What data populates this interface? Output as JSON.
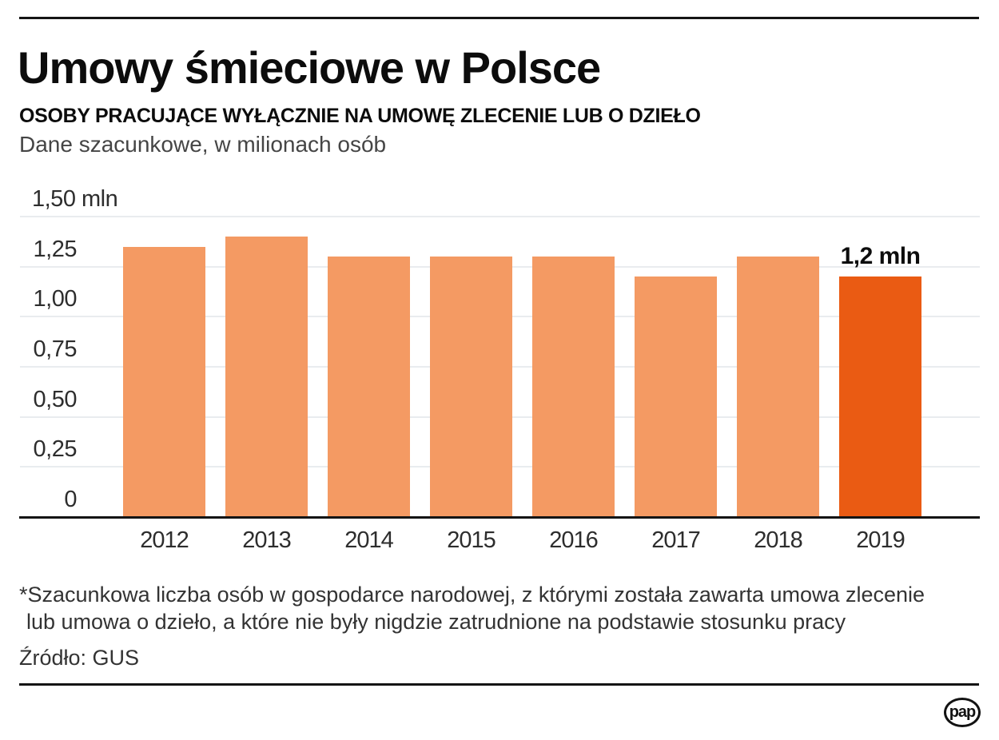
{
  "header": {
    "title": "Umowy śmieciowe w Polsce",
    "subtitle": "OSOBY PRACUJĄCE WYŁĄCZNIE NA UMOWĘ ZLECENIE LUB O DZIEŁO",
    "note": "Dane szacunkowe, w milionach osób"
  },
  "chart_data": {
    "type": "bar",
    "title": "Umowy śmieciowe w Polsce",
    "subtitle": "OSOBY PRACUJĄCE WYŁĄCZNIE NA UMOWĘ ZLECENIE LUB O DZIEŁO",
    "unit_note": "Dane szacunkowe, w milionach osób",
    "categories": [
      "2012",
      "2013",
      "2014",
      "2015",
      "2016",
      "2017",
      "2018",
      "2019"
    ],
    "values": [
      1.35,
      1.4,
      1.3,
      1.3,
      1.3,
      1.2,
      1.3,
      1.2
    ],
    "xlabel": "",
    "ylabel": "",
    "ylim": [
      0,
      1.5
    ],
    "yticks": [
      {
        "value": 0,
        "label": "0"
      },
      {
        "value": 0.25,
        "label": "0,25"
      },
      {
        "value": 0.5,
        "label": "0,50"
      },
      {
        "value": 0.75,
        "label": "0,75"
      },
      {
        "value": 1.0,
        "label": "1,00"
      },
      {
        "value": 1.25,
        "label": "1,25"
      },
      {
        "value": 1.5,
        "label": "1,50 mln"
      }
    ],
    "grid": true,
    "legend": false,
    "highlight_category": "2019",
    "annotation": {
      "label": "1,2 mln",
      "category": "2019",
      "value": 1.2
    },
    "colors": {
      "bar": "#F49A63",
      "highlight": "#EA5B13",
      "gridline": "#E9ECEF",
      "baseline": "#141414"
    }
  },
  "footer": {
    "footnote": {
      "lines": [
        "*Szacunkowa liczba osób w gospodarce narodowej, z którymi została zawarta umowa zlecenie",
        "lub umowa o dzieło, a które nie były nigdzie zatrudnione na podstawie stosunku pracy"
      ]
    },
    "source": "Źródło: GUS",
    "logo_text": "pap"
  }
}
